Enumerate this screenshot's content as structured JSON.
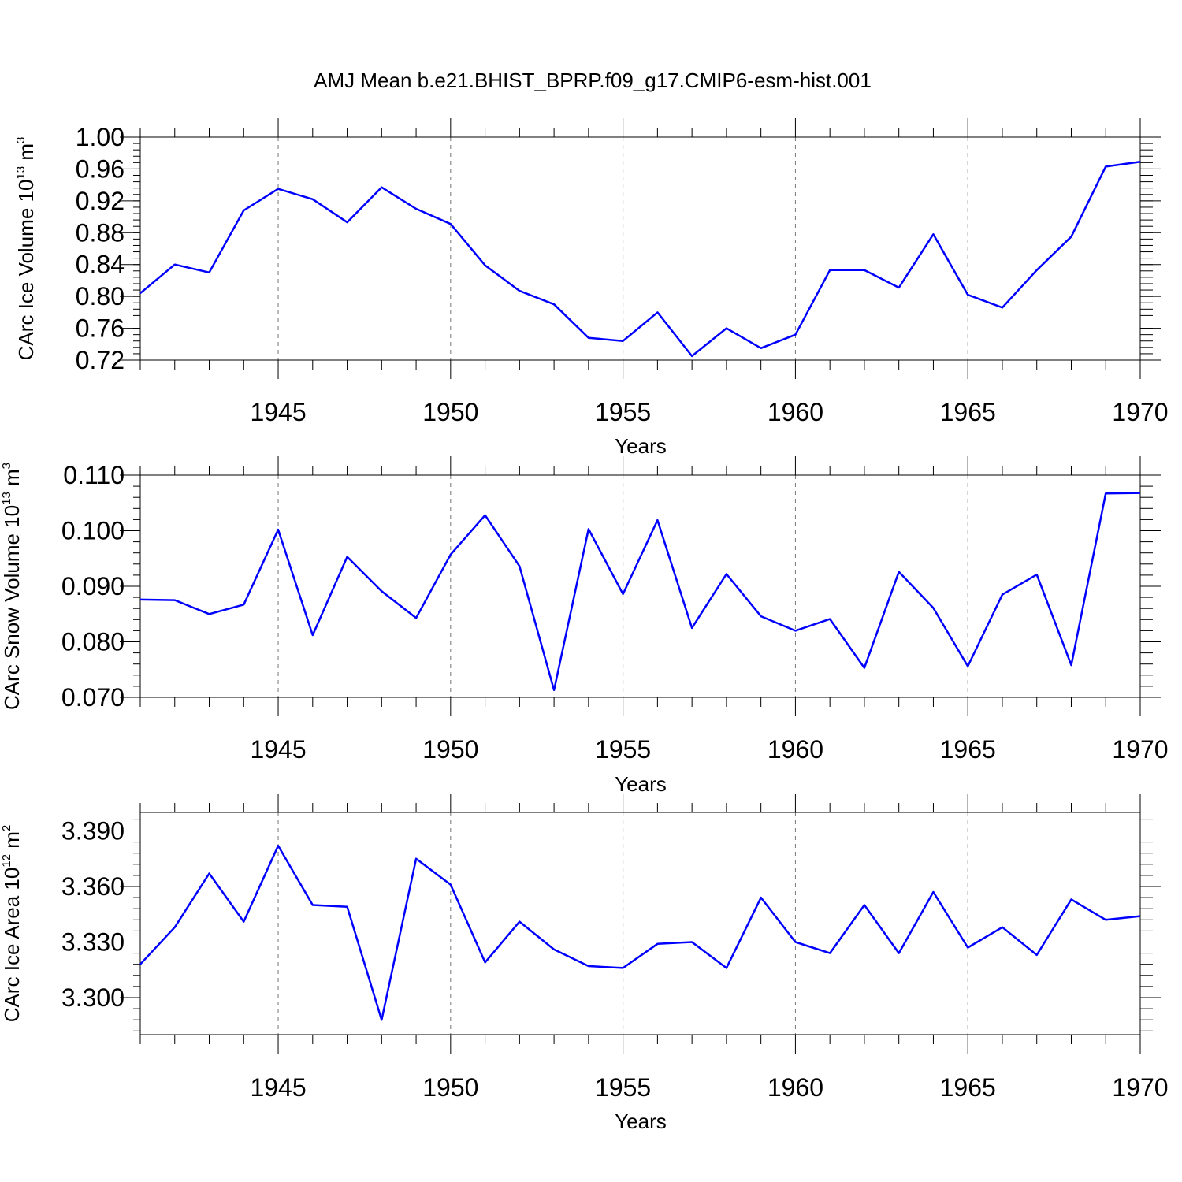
{
  "figure": {
    "title": "AMJ Mean b.e21.BHIST_BPRP.f09_g17.CMIP6-esm-hist.001"
  },
  "chart_data": [
    {
      "type": "line",
      "ylabel": {
        "prefix": "CArc Ice Volume 10",
        "exp": "13",
        "unit": " m",
        "unit_exp": "3"
      },
      "xlabel": "Years",
      "xlim": [
        1941,
        1970
      ],
      "ylim": [
        0.72,
        1.0
      ],
      "xticks": [
        "1945",
        "1950",
        "1955",
        "1960",
        "1965",
        "1970"
      ],
      "yticks": [
        "0.72",
        "0.76",
        "0.80",
        "0.84",
        "0.88",
        "0.92",
        "0.96",
        "1.00"
      ],
      "grid": "vertical dashed at labeled years",
      "color": "#0000ff",
      "x": [
        1941,
        1942,
        1943,
        1944,
        1945,
        1946,
        1947,
        1948,
        1949,
        1950,
        1951,
        1952,
        1953,
        1954,
        1955,
        1956,
        1957,
        1958,
        1959,
        1960,
        1961,
        1962,
        1963,
        1964,
        1965,
        1966,
        1967,
        1968,
        1969,
        1970
      ],
      "values": [
        0.804,
        0.84,
        0.83,
        0.908,
        0.935,
        0.922,
        0.893,
        0.937,
        0.91,
        0.891,
        0.839,
        0.807,
        0.79,
        0.748,
        0.744,
        0.78,
        0.725,
        0.76,
        0.735,
        0.752,
        0.833,
        0.833,
        0.811,
        0.878,
        0.802,
        0.786,
        0.833,
        0.875,
        0.963,
        0.969
      ]
    },
    {
      "type": "line",
      "ylabel": {
        "prefix": "CArc Snow Volume 10",
        "exp": "13",
        "unit": " m",
        "unit_exp": "3"
      },
      "xlabel": "Years",
      "xlim": [
        1941,
        1970
      ],
      "ylim": [
        0.07,
        0.11
      ],
      "xticks": [
        "1945",
        "1950",
        "1955",
        "1960",
        "1965",
        "1970"
      ],
      "yticks": [
        "0.070",
        "0.080",
        "0.090",
        "0.100",
        "0.110"
      ],
      "grid": "vertical dashed at labeled years",
      "color": "#0000ff",
      "x": [
        1941,
        1942,
        1943,
        1944,
        1945,
        1946,
        1947,
        1948,
        1949,
        1950,
        1951,
        1952,
        1953,
        1954,
        1955,
        1956,
        1957,
        1958,
        1959,
        1960,
        1961,
        1962,
        1963,
        1964,
        1965,
        1966,
        1967,
        1968,
        1969,
        1970
      ],
      "values": [
        0.0876,
        0.0875,
        0.085,
        0.0867,
        0.1002,
        0.0812,
        0.0953,
        0.0891,
        0.0843,
        0.0957,
        0.1028,
        0.0936,
        0.0713,
        0.1003,
        0.0886,
        0.1019,
        0.0825,
        0.0922,
        0.0846,
        0.082,
        0.0841,
        0.0753,
        0.0926,
        0.0861,
        0.0756,
        0.0885,
        0.0921,
        0.0758,
        0.1067,
        0.1068
      ]
    },
    {
      "type": "line",
      "ylabel": {
        "prefix": "CArc Ice Area 10",
        "exp": "12",
        "unit": " m",
        "unit_exp": "2"
      },
      "xlabel": "Years",
      "xlim": [
        1941,
        1970
      ],
      "ylim": [
        3.28,
        3.4
      ],
      "xticks": [
        "1945",
        "1950",
        "1955",
        "1960",
        "1965",
        "1970"
      ],
      "yticks": [
        "3.300",
        "3.330",
        "3.360",
        "3.390"
      ],
      "grid": "vertical dashed at labeled years",
      "color": "#0000ff",
      "x": [
        1941,
        1942,
        1943,
        1944,
        1945,
        1946,
        1947,
        1948,
        1949,
        1950,
        1951,
        1952,
        1953,
        1954,
        1955,
        1956,
        1957,
        1958,
        1959,
        1960,
        1961,
        1962,
        1963,
        1964,
        1965,
        1966,
        1967,
        1968,
        1969,
        1970
      ],
      "values": [
        3.318,
        3.338,
        3.367,
        3.341,
        3.382,
        3.35,
        3.349,
        3.288,
        3.375,
        3.361,
        3.319,
        3.341,
        3.326,
        3.317,
        3.316,
        3.329,
        3.33,
        3.316,
        3.354,
        3.33,
        3.324,
        3.35,
        3.324,
        3.357,
        3.327,
        3.338,
        3.323,
        3.353,
        3.342,
        3.344
      ]
    }
  ]
}
